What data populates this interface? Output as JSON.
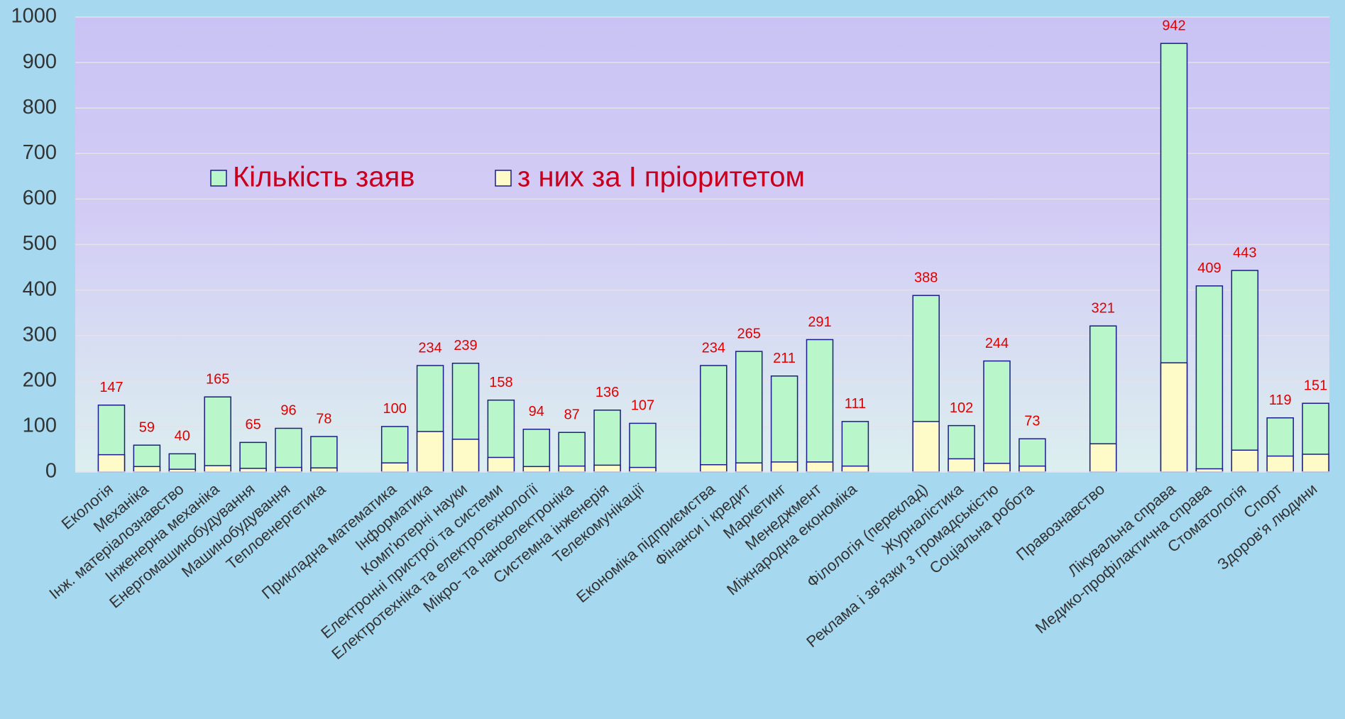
{
  "chart_data": {
    "type": "bar",
    "categories": [
      "Екологія",
      "Механіка",
      "Інж. матеріалознавство",
      "Інженерна механіка",
      "Енергомашинобудування",
      "Машинобудування",
      "Теплоенергетика",
      null,
      "Прикладна математика",
      "Інформатика",
      "Комп'ютерні науки",
      "Електронні пристрої та системи",
      "Електротехніка та електротехнології",
      "Мікро- та наноелектроніка",
      "Системна інженерія",
      "Телекомунікації",
      null,
      "Економіка підприємства",
      "Фінанси і кредит",
      "Маркетинг",
      "Менеджмент",
      "Міжнародна економіка",
      null,
      "Філологія (переклад)",
      "Журналістика",
      "Реклама і зв'язки з громадськістю",
      "Соціальна робота",
      null,
      "Правознавство",
      null,
      "Лікувальна справа",
      "Медико-профілактична справа",
      "Стоматологія",
      "Спорт",
      "Здоров'я людини"
    ],
    "series": [
      {
        "name": "Кількість заяв",
        "color": "#b9f6c9",
        "values": [
          147,
          59,
          40,
          165,
          65,
          96,
          78,
          null,
          100,
          234,
          239,
          158,
          94,
          87,
          136,
          107,
          null,
          234,
          265,
          211,
          291,
          111,
          null,
          388,
          102,
          244,
          73,
          null,
          321,
          null,
          942,
          409,
          443,
          119,
          151
        ]
      },
      {
        "name": "з них за I пріоритетом",
        "color": "#fffbc8",
        "values": [
          38,
          12,
          6,
          14,
          8,
          10,
          9,
          null,
          20,
          89,
          72,
          32,
          12,
          13,
          15,
          10,
          null,
          16,
          20,
          22,
          22,
          13,
          null,
          111,
          29,
          19,
          13,
          null,
          62,
          null,
          240,
          7,
          48,
          35,
          39
        ]
      }
    ],
    "ylim": [
      0,
      1000
    ],
    "yticks": [
      0,
      100,
      200,
      300,
      400,
      500,
      600,
      700,
      800,
      900,
      1000
    ],
    "grid": true,
    "legend": "upper left"
  }
}
